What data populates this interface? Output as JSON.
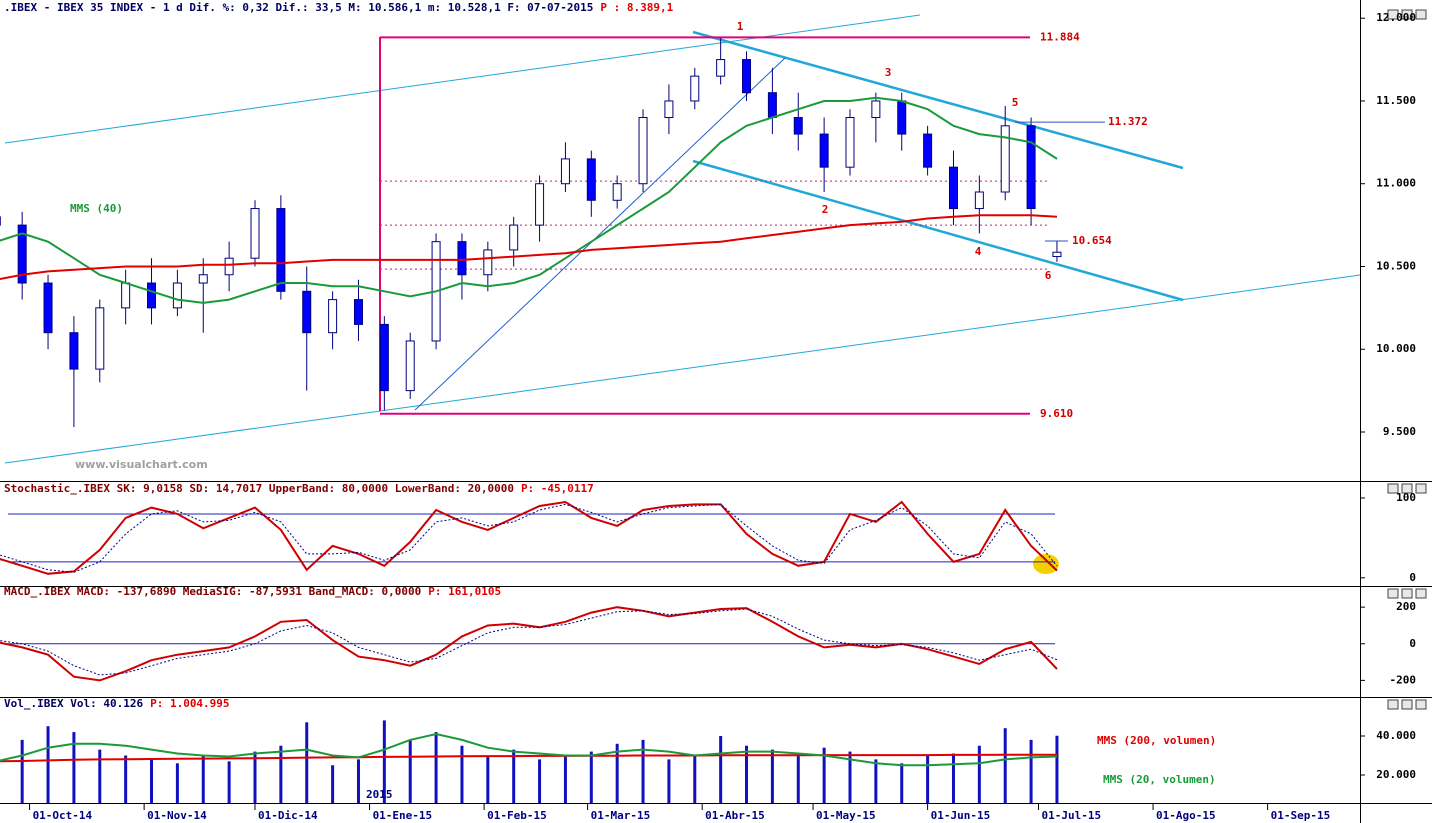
{
  "chart_data": [
    {
      "type": "candlestick",
      "title": ".IBEX - IBEX 35 INDEX -   1 d Dif. %: 0,32 Dif.: 33,5 M: 10.586,1 m: 10.528,1 F: 07-07-2015",
      "status": "P : 8.389,1",
      "watermark": "www.visualchart.com",
      "x": [
        "2014-09-22",
        "2014-09-29",
        "2014-10-06",
        "2014-10-13",
        "2014-10-20",
        "2014-10-27",
        "2014-11-03",
        "2014-11-10",
        "2014-11-17",
        "2014-11-24",
        "2014-12-01",
        "2014-12-08",
        "2014-12-15",
        "2014-12-22",
        "2014-12-29",
        "2015-01-05",
        "2015-01-12",
        "2015-01-19",
        "2015-01-26",
        "2015-02-02",
        "2015-02-09",
        "2015-02-16",
        "2015-02-23",
        "2015-03-02",
        "2015-03-09",
        "2015-03-16",
        "2015-03-23",
        "2015-03-30",
        "2015-04-06",
        "2015-04-13",
        "2015-04-20",
        "2015-04-27",
        "2015-05-04",
        "2015-05-11",
        "2015-05-18",
        "2015-05-25",
        "2015-06-01",
        "2015-06-08",
        "2015-06-15",
        "2015-06-22",
        "2015-06-29",
        "2015-07-06"
      ],
      "open": [
        10800,
        10750,
        10400,
        10100,
        9880,
        10250,
        10400,
        10250,
        10400,
        10450,
        10550,
        10850,
        10350,
        10100,
        10300,
        10150,
        9750,
        10050,
        10650,
        10450,
        10600,
        10750,
        11000,
        11150,
        10900,
        11000,
        11400,
        11500,
        11650,
        11750,
        11550,
        11400,
        11300,
        11100,
        11400,
        11500,
        11300,
        11100,
        10850,
        10950,
        11350,
        10560
      ],
      "high": [
        10920,
        10830,
        10450,
        10200,
        10300,
        10480,
        10550,
        10480,
        10550,
        10650,
        10900,
        10930,
        10500,
        10350,
        10420,
        10200,
        10100,
        10700,
        10700,
        10650,
        10800,
        11050,
        11250,
        11200,
        11050,
        11450,
        11600,
        11700,
        11884,
        11800,
        11700,
        11550,
        11400,
        11450,
        11550,
        11550,
        11350,
        11200,
        11050,
        11470,
        11400,
        10654
      ],
      "low": [
        10650,
        10300,
        10000,
        9530,
        9800,
        10150,
        10150,
        10200,
        10100,
        10350,
        10500,
        10300,
        9750,
        10000,
        10050,
        9630,
        9700,
        10000,
        10300,
        10350,
        10500,
        10650,
        10950,
        10800,
        10850,
        10950,
        11300,
        11450,
        11600,
        11500,
        11300,
        11200,
        10950,
        11050,
        11250,
        11200,
        11050,
        10750,
        10700,
        10900,
        10750,
        10528
      ],
      "close": [
        10750,
        10400,
        10100,
        9880,
        10250,
        10400,
        10250,
        10400,
        10450,
        10550,
        10850,
        10350,
        10100,
        10300,
        10150,
        9750,
        10050,
        10650,
        10450,
        10600,
        10750,
        11000,
        11150,
        10900,
        11000,
        11400,
        11500,
        11650,
        11750,
        11550,
        11400,
        11300,
        11100,
        11400,
        11500,
        11300,
        11100,
        10850,
        10950,
        11350,
        10850,
        10586
      ],
      "up_color": "#ffffff",
      "down_color": "#0000ff",
      "series": [
        {
          "name": "MMS (40)",
          "color": "#1a9a3a",
          "values": [
            10650,
            10700,
            10650,
            10550,
            10450,
            10400,
            10350,
            10300,
            10280,
            10300,
            10350,
            10400,
            10400,
            10380,
            10380,
            10350,
            10320,
            10350,
            10400,
            10380,
            10400,
            10450,
            10550,
            10650,
            10750,
            10850,
            10950,
            11100,
            11250,
            11350,
            11400,
            11450,
            11500,
            11500,
            11520,
            11500,
            11450,
            11350,
            11300,
            11280,
            11250,
            11150
          ]
        },
        {
          "color": "#e00000",
          "values": [
            10420,
            10450,
            10470,
            10480,
            10490,
            10500,
            10500,
            10500,
            10510,
            10510,
            10520,
            10520,
            10530,
            10540,
            10540,
            10540,
            10540,
            10540,
            10540,
            10550,
            10560,
            10570,
            10580,
            10600,
            10610,
            10620,
            10630,
            10640,
            10650,
            10670,
            10690,
            10710,
            10730,
            10750,
            10760,
            10770,
            10790,
            10800,
            10810,
            10810,
            10810,
            10800
          ]
        }
      ],
      "levels": [
        {
          "value": 11884,
          "label": "11.884",
          "color": "#e0007a"
        },
        {
          "value": 11372,
          "label": "11.372",
          "color": "#3050c0"
        },
        {
          "value": 10654,
          "label": "10.654",
          "color": "#3050c0"
        },
        {
          "value": 9610,
          "label": "9.610",
          "color": "#e0007a"
        }
      ],
      "dotted_levels": [
        11016,
        10750,
        10484
      ],
      "annotations": [
        "1",
        "2",
        "3",
        "4",
        "5",
        "6"
      ],
      "xlim": [
        "2014-09-23",
        "2015-09-26"
      ],
      "ylim": [
        9210,
        12110
      ],
      "yticks": [
        {
          "value": 9500,
          "label": "9.500"
        },
        {
          "value": 10000,
          "label": "10.000"
        },
        {
          "value": 10500,
          "label": "10.500"
        },
        {
          "value": 11000,
          "label": "11.000"
        },
        {
          "value": 11500,
          "label": "11.500"
        },
        {
          "value": 12000,
          "label": "12.000"
        }
      ]
    },
    {
      "type": "line",
      "title": "Stochastic_.IBEX SK: 9,0158 SD: 14,7017 UpperBand: 80,0000 LowerBand: 20,0000",
      "status": "P: -45,0117",
      "x": [
        "2014-09-22",
        "2014-09-29",
        "2014-10-06",
        "2014-10-13",
        "2014-10-20",
        "2014-10-27",
        "2014-11-03",
        "2014-11-10",
        "2014-11-17",
        "2014-11-24",
        "2014-12-01",
        "2014-12-08",
        "2014-12-15",
        "2014-12-22",
        "2014-12-29",
        "2015-01-05",
        "2015-01-12",
        "2015-01-19",
        "2015-01-26",
        "2015-02-02",
        "2015-02-09",
        "2015-02-16",
        "2015-02-23",
        "2015-03-02",
        "2015-03-09",
        "2015-03-16",
        "2015-03-23",
        "2015-03-30",
        "2015-04-06",
        "2015-04-13",
        "2015-04-20",
        "2015-04-27",
        "2015-05-04",
        "2015-05-11",
        "2015-05-18",
        "2015-05-25",
        "2015-06-01",
        "2015-06-08",
        "2015-06-15",
        "2015-06-22",
        "2015-06-29",
        "2015-07-06"
      ],
      "series": [
        {
          "color": "#d00000",
          "values": [
            25,
            15,
            5,
            8,
            35,
            75,
            88,
            80,
            62,
            75,
            88,
            60,
            10,
            40,
            30,
            15,
            45,
            85,
            70,
            60,
            75,
            90,
            95,
            75,
            65,
            85,
            90,
            92,
            92,
            55,
            30,
            15,
            20,
            80,
            70,
            95,
            55,
            20,
            30,
            85,
            40,
            9.0158
          ]
        },
        {
          "color": "#000080",
          "dash": true,
          "values": [
            30,
            20,
            10,
            7,
            20,
            55,
            80,
            84,
            70,
            72,
            82,
            70,
            30,
            30,
            32,
            22,
            35,
            70,
            75,
            65,
            70,
            85,
            92,
            82,
            70,
            80,
            88,
            90,
            92,
            65,
            40,
            22,
            18,
            60,
            72,
            88,
            65,
            30,
            25,
            70,
            55,
            14.7017
          ]
        }
      ],
      "bands": [
        80,
        20
      ],
      "xlim": [
        "2014-09-23",
        "2015-09-26"
      ],
      "ylim": [
        -9,
        110
      ],
      "yticks": [
        0,
        100
      ]
    },
    {
      "type": "line",
      "title": "MACD_.IBEX MACD: -137,6890 MediaSIG: -87,5931 Band_MACD: 0,0000",
      "status": "P: 161,0105",
      "x": [
        "2014-09-22",
        "2014-09-29",
        "2014-10-06",
        "2014-10-13",
        "2014-10-20",
        "2014-10-27",
        "2014-11-03",
        "2014-11-10",
        "2014-11-17",
        "2014-11-24",
        "2014-12-01",
        "2014-12-08",
        "2014-12-15",
        "2014-12-22",
        "2014-12-29",
        "2015-01-05",
        "2015-01-12",
        "2015-01-19",
        "2015-01-26",
        "2015-02-02",
        "2015-02-09",
        "2015-02-16",
        "2015-02-23",
        "2015-03-02",
        "2015-03-09",
        "2015-03-16",
        "2015-03-23",
        "2015-03-30",
        "2015-04-06",
        "2015-04-13",
        "2015-04-20",
        "2015-04-27",
        "2015-05-04",
        "2015-05-11",
        "2015-05-18",
        "2015-05-25",
        "2015-06-01",
        "2015-06-08",
        "2015-06-15",
        "2015-06-22",
        "2015-06-29",
        "2015-07-06"
      ],
      "series": [
        {
          "color": "#d00000",
          "values": [
            10,
            -20,
            -60,
            -180,
            -200,
            -150,
            -90,
            -60,
            -40,
            -20,
            40,
            120,
            130,
            20,
            -70,
            -90,
            -120,
            -60,
            40,
            100,
            110,
            90,
            120,
            170,
            200,
            180,
            150,
            170,
            190,
            195,
            120,
            40,
            -20,
            -5,
            -20,
            0,
            -30,
            -70,
            -110,
            -30,
            10,
            -137.689
          ]
        },
        {
          "color": "#000080",
          "dash": true,
          "values": [
            20,
            0,
            -40,
            -120,
            -170,
            -160,
            -120,
            -80,
            -60,
            -40,
            0,
            70,
            100,
            60,
            -20,
            -60,
            -100,
            -80,
            -10,
            60,
            90,
            90,
            105,
            140,
            175,
            180,
            160,
            165,
            180,
            190,
            150,
            80,
            20,
            0,
            -10,
            -5,
            -20,
            -50,
            -90,
            -60,
            -30,
            -87.5931
          ]
        }
      ],
      "bands": [
        0
      ],
      "xlim": [
        "2014-09-23",
        "2015-09-26"
      ],
      "ylim": [
        -280,
        250
      ],
      "yticks": [
        -200,
        0,
        200
      ]
    },
    {
      "type": "bar",
      "title": "Vol_.IBEX Vol: 40.126",
      "status": "P: 1.004.995",
      "year_label": "2015",
      "x": [
        "2014-09-22",
        "2014-09-29",
        "2014-10-06",
        "2014-10-13",
        "2014-10-20",
        "2014-10-27",
        "2014-11-03",
        "2014-11-10",
        "2014-11-17",
        "2014-11-24",
        "2014-12-01",
        "2014-12-08",
        "2014-12-15",
        "2014-12-22",
        "2014-12-29",
        "2015-01-05",
        "2015-01-12",
        "2015-01-19",
        "2015-01-26",
        "2015-02-02",
        "2015-02-09",
        "2015-02-16",
        "2015-02-23",
        "2015-03-02",
        "2015-03-09",
        "2015-03-16",
        "2015-03-23",
        "2015-03-30",
        "2015-04-06",
        "2015-04-13",
        "2015-04-20",
        "2015-04-27",
        "2015-05-04",
        "2015-05-11",
        "2015-05-18",
        "2015-05-25",
        "2015-06-01",
        "2015-06-08",
        "2015-06-15",
        "2015-06-22",
        "2015-06-29",
        "2015-07-06"
      ],
      "values": [
        30000,
        38000,
        45000,
        42000,
        33000,
        30000,
        28000,
        26000,
        30000,
        27000,
        32000,
        35000,
        47000,
        25000,
        28000,
        48000,
        38000,
        42000,
        35000,
        30000,
        33000,
        28000,
        30000,
        32000,
        36000,
        38000,
        28000,
        30000,
        40000,
        35000,
        33000,
        30000,
        34000,
        32000,
        28000,
        26000,
        30000,
        31000,
        35000,
        44000,
        38000,
        40126
      ],
      "color": "#1010c0",
      "series": [
        {
          "name": "MMS (200, volumen)",
          "color": "#e00000",
          "values": [
            27000,
            27200,
            27500,
            27800,
            28000,
            28100,
            28200,
            28300,
            28400,
            28500,
            28600,
            28700,
            28900,
            29000,
            29100,
            29300,
            29400,
            29500,
            29600,
            29700,
            29700,
            29800,
            29800,
            29900,
            29900,
            30000,
            30000,
            30000,
            30100,
            30100,
            30100,
            30100,
            30200,
            30200,
            30200,
            30200,
            30200,
            30300,
            30300,
            30400,
            30400,
            30400
          ]
        },
        {
          "name": "MMS (20, volumen)",
          "color": "#1a9a3a",
          "values": [
            27000,
            30000,
            34000,
            36000,
            36000,
            35000,
            33000,
            31000,
            30000,
            29500,
            31000,
            32000,
            33000,
            30000,
            29000,
            33000,
            38000,
            41000,
            38000,
            34000,
            32000,
            31000,
            30000,
            30000,
            32000,
            33000,
            32000,
            30000,
            31000,
            32000,
            32000,
            31000,
            30000,
            28000,
            26000,
            25000,
            25000,
            25500,
            26000,
            28000,
            29000,
            29500
          ]
        }
      ],
      "xlim": [
        "2014-09-23",
        "2015-09-26"
      ],
      "ylim": [
        5640,
        52300
      ],
      "yticks": [
        {
          "value": 20000,
          "label": "20.000"
        },
        {
          "value": 40000,
          "label": "40.000"
        }
      ],
      "xticks": [
        {
          "value": "2014-10-01",
          "label": "01-Oct-14"
        },
        {
          "value": "2014-11-01",
          "label": "01-Nov-14"
        },
        {
          "value": "2014-12-01",
          "label": "01-Dic-14"
        },
        {
          "value": "2015-01-01",
          "label": "01-Ene-15"
        },
        {
          "value": "2015-02-01",
          "label": "01-Feb-15"
        },
        {
          "value": "2015-03-01",
          "label": "01-Mar-15"
        },
        {
          "value": "2015-04-01",
          "label": "01-Abr-15"
        },
        {
          "value": "2015-05-01",
          "label": "01-May-15"
        },
        {
          "value": "2015-06-01",
          "label": "01-Jun-15"
        },
        {
          "value": "2015-07-01",
          "label": "01-Jul-15"
        },
        {
          "value": "2015-08-01",
          "label": "01-Ago-15"
        },
        {
          "value": "2015-09-01",
          "label": "01-Sep-15"
        }
      ]
    }
  ]
}
